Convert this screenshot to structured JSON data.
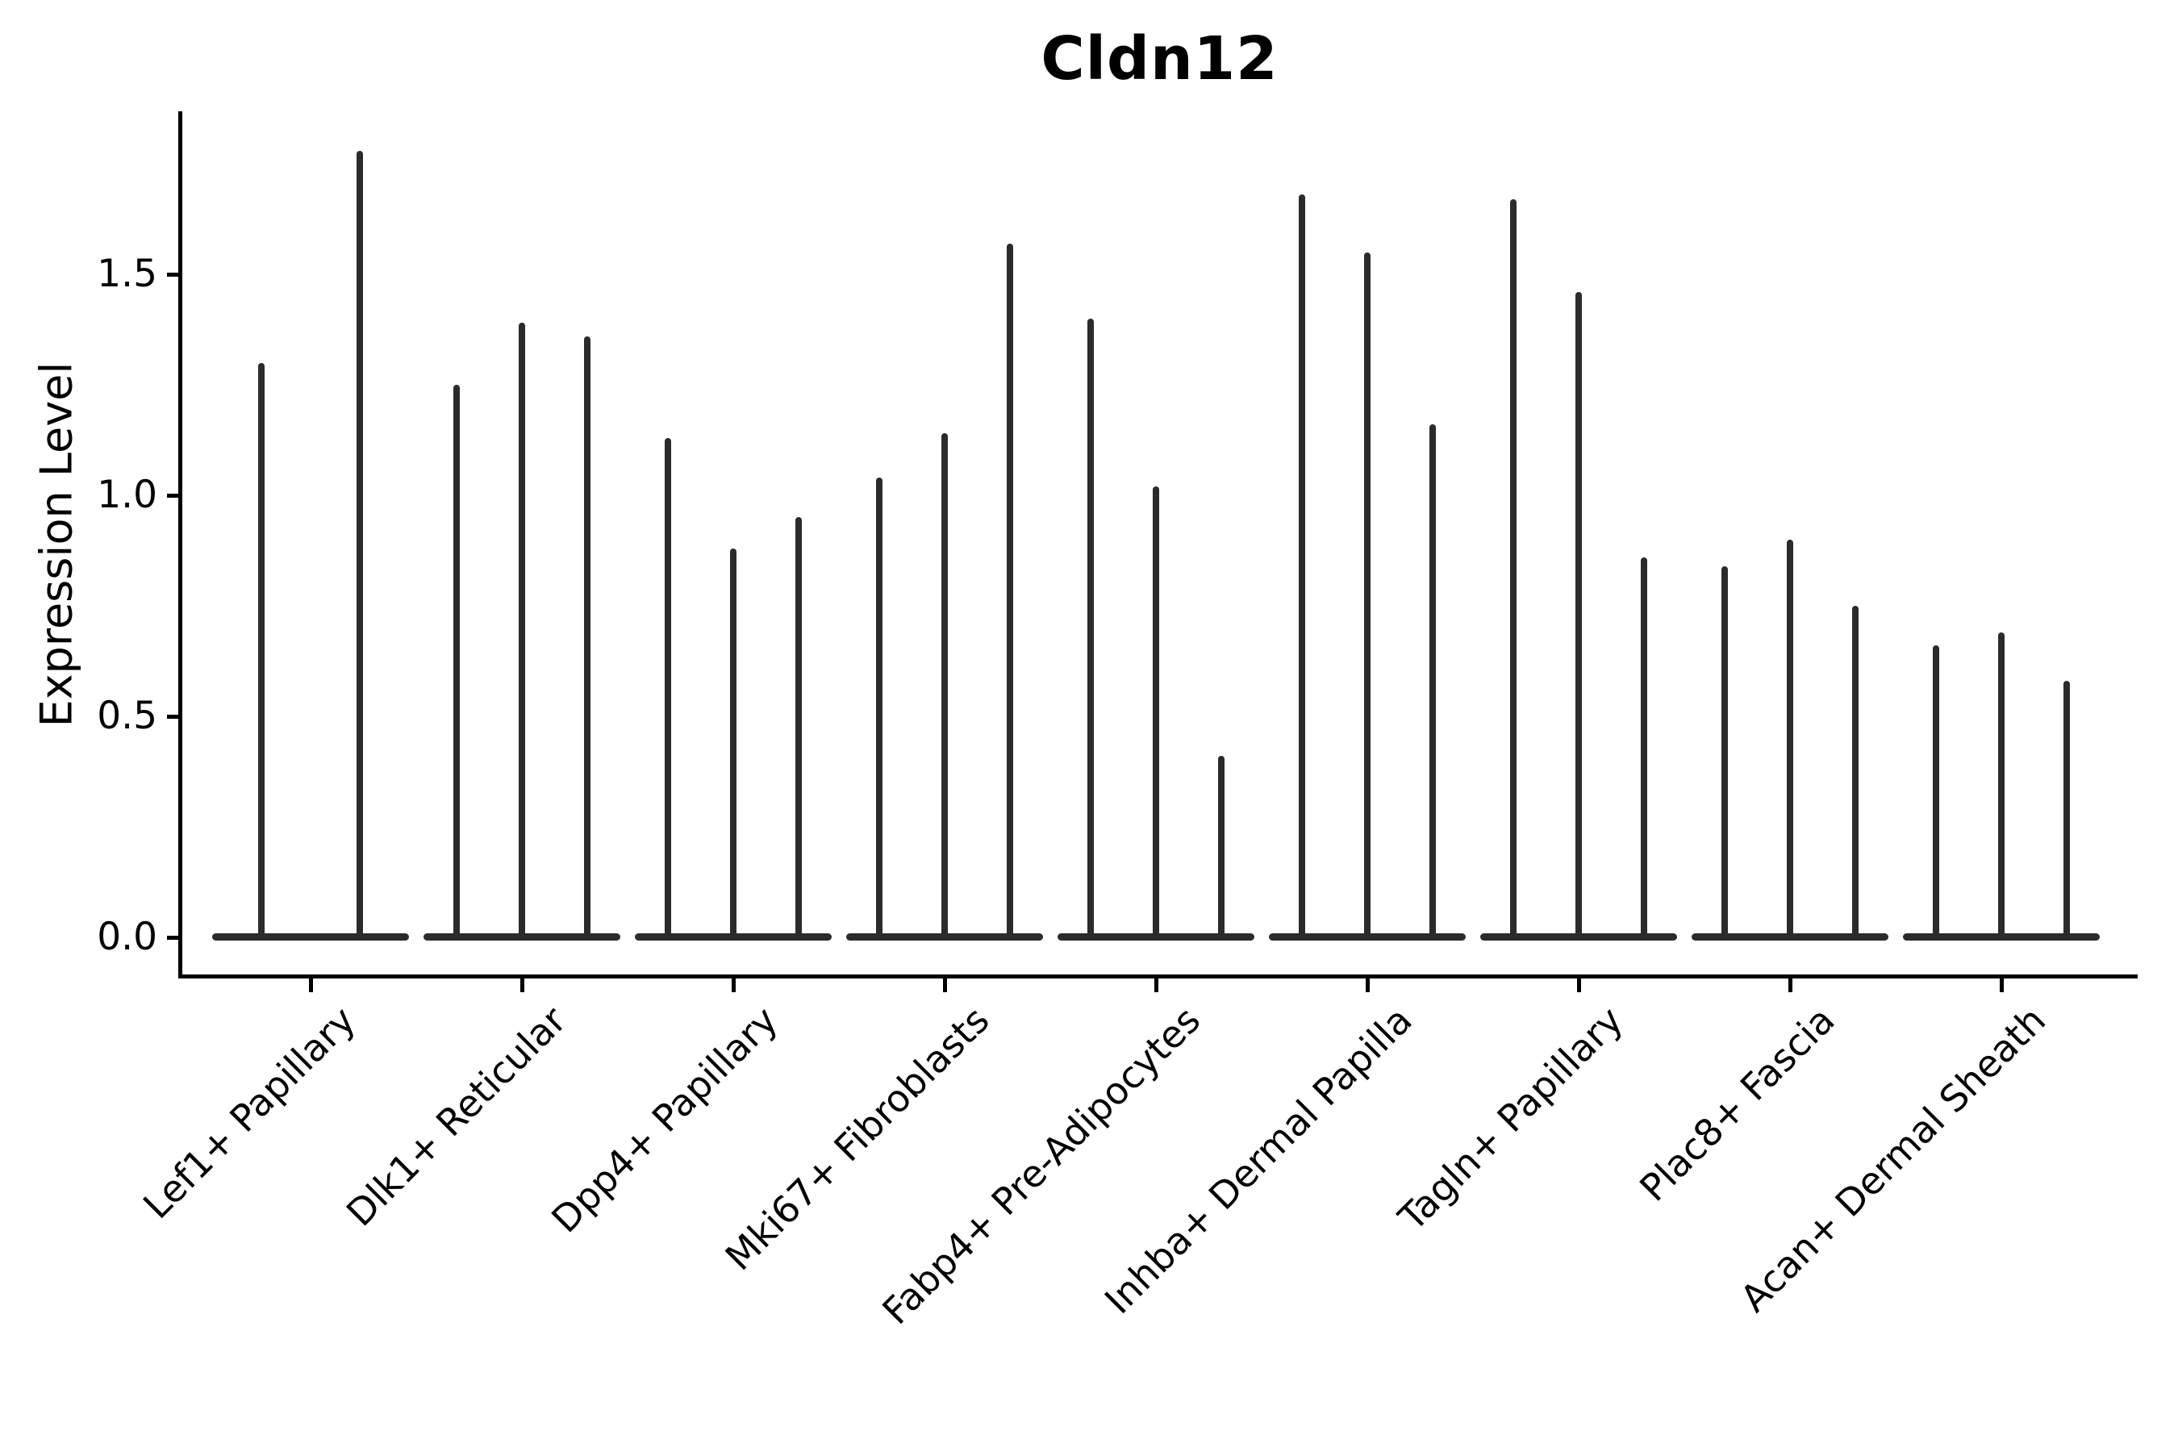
{
  "title": "Cldn12",
  "chart_data": {
    "type": "violin",
    "title": "Cldn12",
    "xlabel": "",
    "ylabel": "Expression Level",
    "ytick_labels": [
      "0.0",
      "0.5",
      "1.0",
      "1.5"
    ],
    "ytick_values": [
      0.0,
      0.5,
      1.0,
      1.5
    ],
    "ylim": [
      -0.09,
      1.87
    ],
    "grid": false,
    "legend": "none",
    "xtick_rotation_deg": 45,
    "violin_style": "very thin spikes rising from a flat base at 0 (expression concentrated at zero)",
    "violin_color": "#2b2b2b",
    "axis_color": "#000000",
    "categories": [
      "Lef1+ Papillary",
      "Dlk1+ Reticular",
      "Dpp4+ Papillary",
      "Mki67+ Fibroblasts",
      "Fabp4+ Pre-Adipocytes",
      "Inhba+ Dermal Papilla",
      "Tagln+ Papillary",
      "Plac8+ Fascia",
      "Acan+ Dermal Sheath"
    ],
    "violins": [
      {
        "category": "Lef1+ Papillary",
        "maxima": [
          1.3,
          1.78
        ]
      },
      {
        "category": "Dlk1+ Reticular",
        "maxima": [
          1.25,
          1.39,
          1.36
        ]
      },
      {
        "category": "Dpp4+ Papillary",
        "maxima": [
          1.13,
          0.88,
          0.95
        ]
      },
      {
        "category": "Mki67+ Fibroblasts",
        "maxima": [
          1.04,
          1.14,
          1.57
        ]
      },
      {
        "category": "Fabp4+ Pre-Adipocytes",
        "maxima": [
          1.4,
          1.02,
          0.41
        ]
      },
      {
        "category": "Inhba+ Dermal Papilla",
        "maxima": [
          1.68,
          1.55,
          1.16
        ]
      },
      {
        "category": "Tagln+ Papillary",
        "maxima": [
          1.67,
          1.46,
          0.86
        ]
      },
      {
        "category": "Plac8+ Fascia",
        "maxima": [
          0.84,
          0.9,
          0.75
        ]
      },
      {
        "category": "Acan+ Dermal Sheath",
        "maxima": [
          0.66,
          0.69,
          0.58
        ]
      }
    ]
  }
}
